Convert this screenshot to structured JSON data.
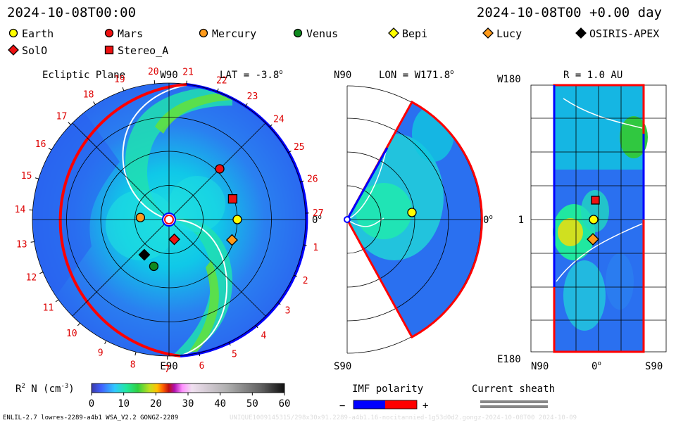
{
  "header": {
    "date_left": "2024-10-08T00:00",
    "date_right": "2024-10-08T00 +0.00 day"
  },
  "legend": {
    "row1": [
      {
        "label": "Earth",
        "marker": "circle",
        "color": "#ffff00"
      },
      {
        "label": "Mars",
        "marker": "circle",
        "color": "#ee1111"
      },
      {
        "label": "Mercury",
        "marker": "circle",
        "color": "#ff9a1a"
      },
      {
        "label": "Venus",
        "marker": "circle",
        "color": "#0f8a1f"
      },
      {
        "label": "Bepi",
        "marker": "diamond",
        "color": "#ffff00"
      },
      {
        "label": "Lucy",
        "marker": "diamond",
        "color": "#ff9a1a"
      },
      {
        "label": "OSIRIS-APEX",
        "marker": "diamond",
        "color": "#000000"
      }
    ],
    "row2": [
      {
        "label": "SolO",
        "marker": "diamond",
        "color": "#ee1111"
      },
      {
        "label": "Stereo_A",
        "marker": "square",
        "color": "#ee1111"
      }
    ]
  },
  "panels": {
    "ecliptic": {
      "title": "Ecliptic Plane",
      "lat_label": "LAT = -3.8",
      "top": "W90",
      "bottom": "E90",
      "right": "0",
      "sector_numbers": [
        "20",
        "21",
        "22",
        "23",
        "24",
        "25",
        "26",
        "27",
        "1",
        "2",
        "3",
        "4",
        "5",
        "6",
        "7",
        "8",
        "9",
        "10",
        "11",
        "12",
        "13",
        "14",
        "15",
        "16",
        "17",
        "18",
        "19"
      ]
    },
    "meridional": {
      "lon_label": "LON = W171.8",
      "top": "N90",
      "bottom": "S90",
      "right": "0"
    },
    "radial": {
      "r_label": "R = 1.0 AU",
      "y_top": "W180",
      "y_mid": "1",
      "y_bottom": "E180",
      "x_left": "N90",
      "x_mid": "0",
      "x_right": "S90"
    }
  },
  "colorbar": {
    "label": "R",
    "label_sup": "2",
    "label_rest": " N (cm",
    "label_unit_sup": "-3",
    "label_end": ")",
    "ticks": [
      "0",
      "10",
      "20",
      "30",
      "40",
      "50",
      "60"
    ]
  },
  "imf": {
    "title": "IMF polarity",
    "minus": "−",
    "plus": "+",
    "neg_color": "#0000ff",
    "pos_color": "#ff0000"
  },
  "sheath": {
    "title": "Current sheath"
  },
  "footer": {
    "left": "ENLIL-2.7 lowres-2289-a4b1 WSA_V2.2 GONGZ-2289",
    "right": "UNIQUE1009145315/298x30x91.2289-a4b1.16-nocitannied-1g53d0d2.gongz-2024-10-08T00   2024-10-09"
  },
  "chart_data": {
    "type": "heatmap",
    "title": "Ecliptic Plane",
    "colorbar_range": [
      0,
      60
    ],
    "bodies_ecliptic": [
      {
        "name": "Earth",
        "r_au": 1.0,
        "angle_deg": 0
      },
      {
        "name": "Mars",
        "r_au": 1.05,
        "angle_deg": 45
      },
      {
        "name": "Stereo_A",
        "r_au": 0.98,
        "angle_deg": 18
      },
      {
        "name": "Lucy",
        "r_au": 0.97,
        "angle_deg": -18
      },
      {
        "name": "Mercury",
        "r_au": 0.42,
        "angle_deg": 176
      },
      {
        "name": "SolO",
        "r_au": 0.3,
        "angle_deg": -75
      },
      {
        "name": "Venus",
        "r_au": 0.72,
        "angle_deg": -108
      },
      {
        "name": "OSIRIS-APEX",
        "r_au": 0.63,
        "angle_deg": -125
      }
    ]
  }
}
